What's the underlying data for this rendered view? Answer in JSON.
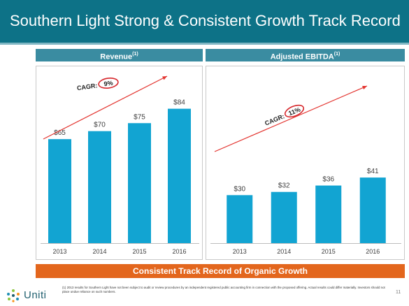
{
  "slide": {
    "title": "Southern Light Strong & Consistent Growth Track Record",
    "banner": "Consistent Track Record of Organic Growth",
    "footnote": "(1) 2013 results for Southern Light have not been subject to audit or review procedures by an independent registered public accounting firm in connection with the proposed offering. Actual results could differ materially.  Investors should not place undue reliance on such numbers.",
    "logo_text": "Uniti",
    "page_number": "11",
    "colors": {
      "header": "#0d7287",
      "panel_header": "#3a8ca1",
      "bar": "#12a4d2",
      "banner": "#e3661d",
      "arrow": "#e3342f"
    }
  },
  "chart_data": [
    {
      "type": "bar",
      "title": "Revenue",
      "title_note": "(1)",
      "categories": [
        "2013",
        "2014",
        "2015",
        "2016"
      ],
      "values": [
        65,
        70,
        75,
        84
      ],
      "value_labels": [
        "$65",
        "$70",
        "$75",
        "$84"
      ],
      "annotation": {
        "label": "CAGR:",
        "value": "9%"
      },
      "ylim": [
        0,
        100
      ]
    },
    {
      "type": "bar",
      "title": "Adjusted EBITDA",
      "title_note": "(1)",
      "categories": [
        "2013",
        "2014",
        "2015",
        "2016"
      ],
      "values": [
        30,
        32,
        36,
        41
      ],
      "value_labels": [
        "$30",
        "$32",
        "$36",
        "$41"
      ],
      "annotation": {
        "label": "CAGR:",
        "value": "11%"
      },
      "ylim": [
        0,
        100
      ]
    }
  ]
}
